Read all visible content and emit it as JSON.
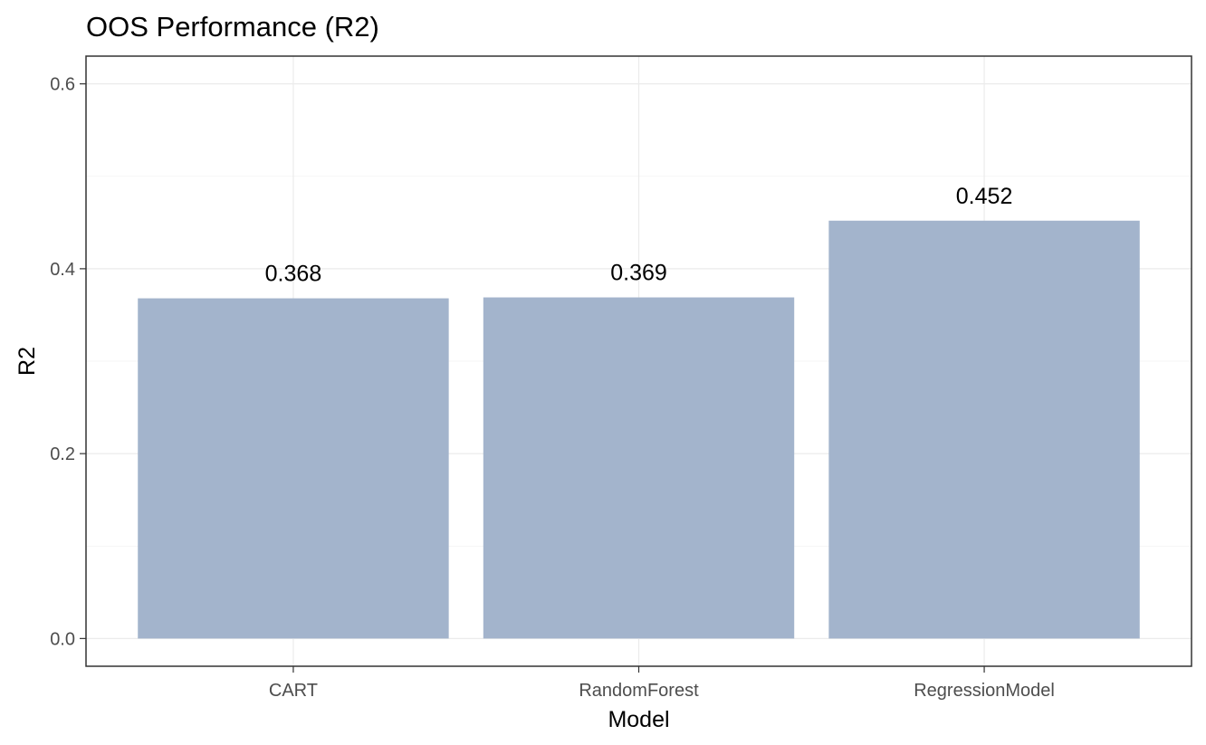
{
  "chart_data": {
    "type": "bar",
    "title": "OOS Performance (R2)",
    "xlabel": "Model",
    "ylabel": "R2",
    "categories": [
      "CART",
      "RandomForest",
      "RegressionModel"
    ],
    "values": [
      0.368,
      0.369,
      0.452
    ],
    "data_labels": [
      "0.368",
      "0.369",
      "0.452"
    ],
    "y_ticks": [
      0.0,
      0.2,
      0.4,
      0.6
    ],
    "y_tick_labels": [
      "0.0",
      "0.2",
      "0.4",
      "0.6"
    ],
    "ylim": [
      -0.03,
      0.63
    ],
    "grid": true,
    "legend": "none",
    "colors": {
      "bar": "#a3b4cc",
      "panel_border": "#333333",
      "grid": "#ebebeb"
    }
  }
}
